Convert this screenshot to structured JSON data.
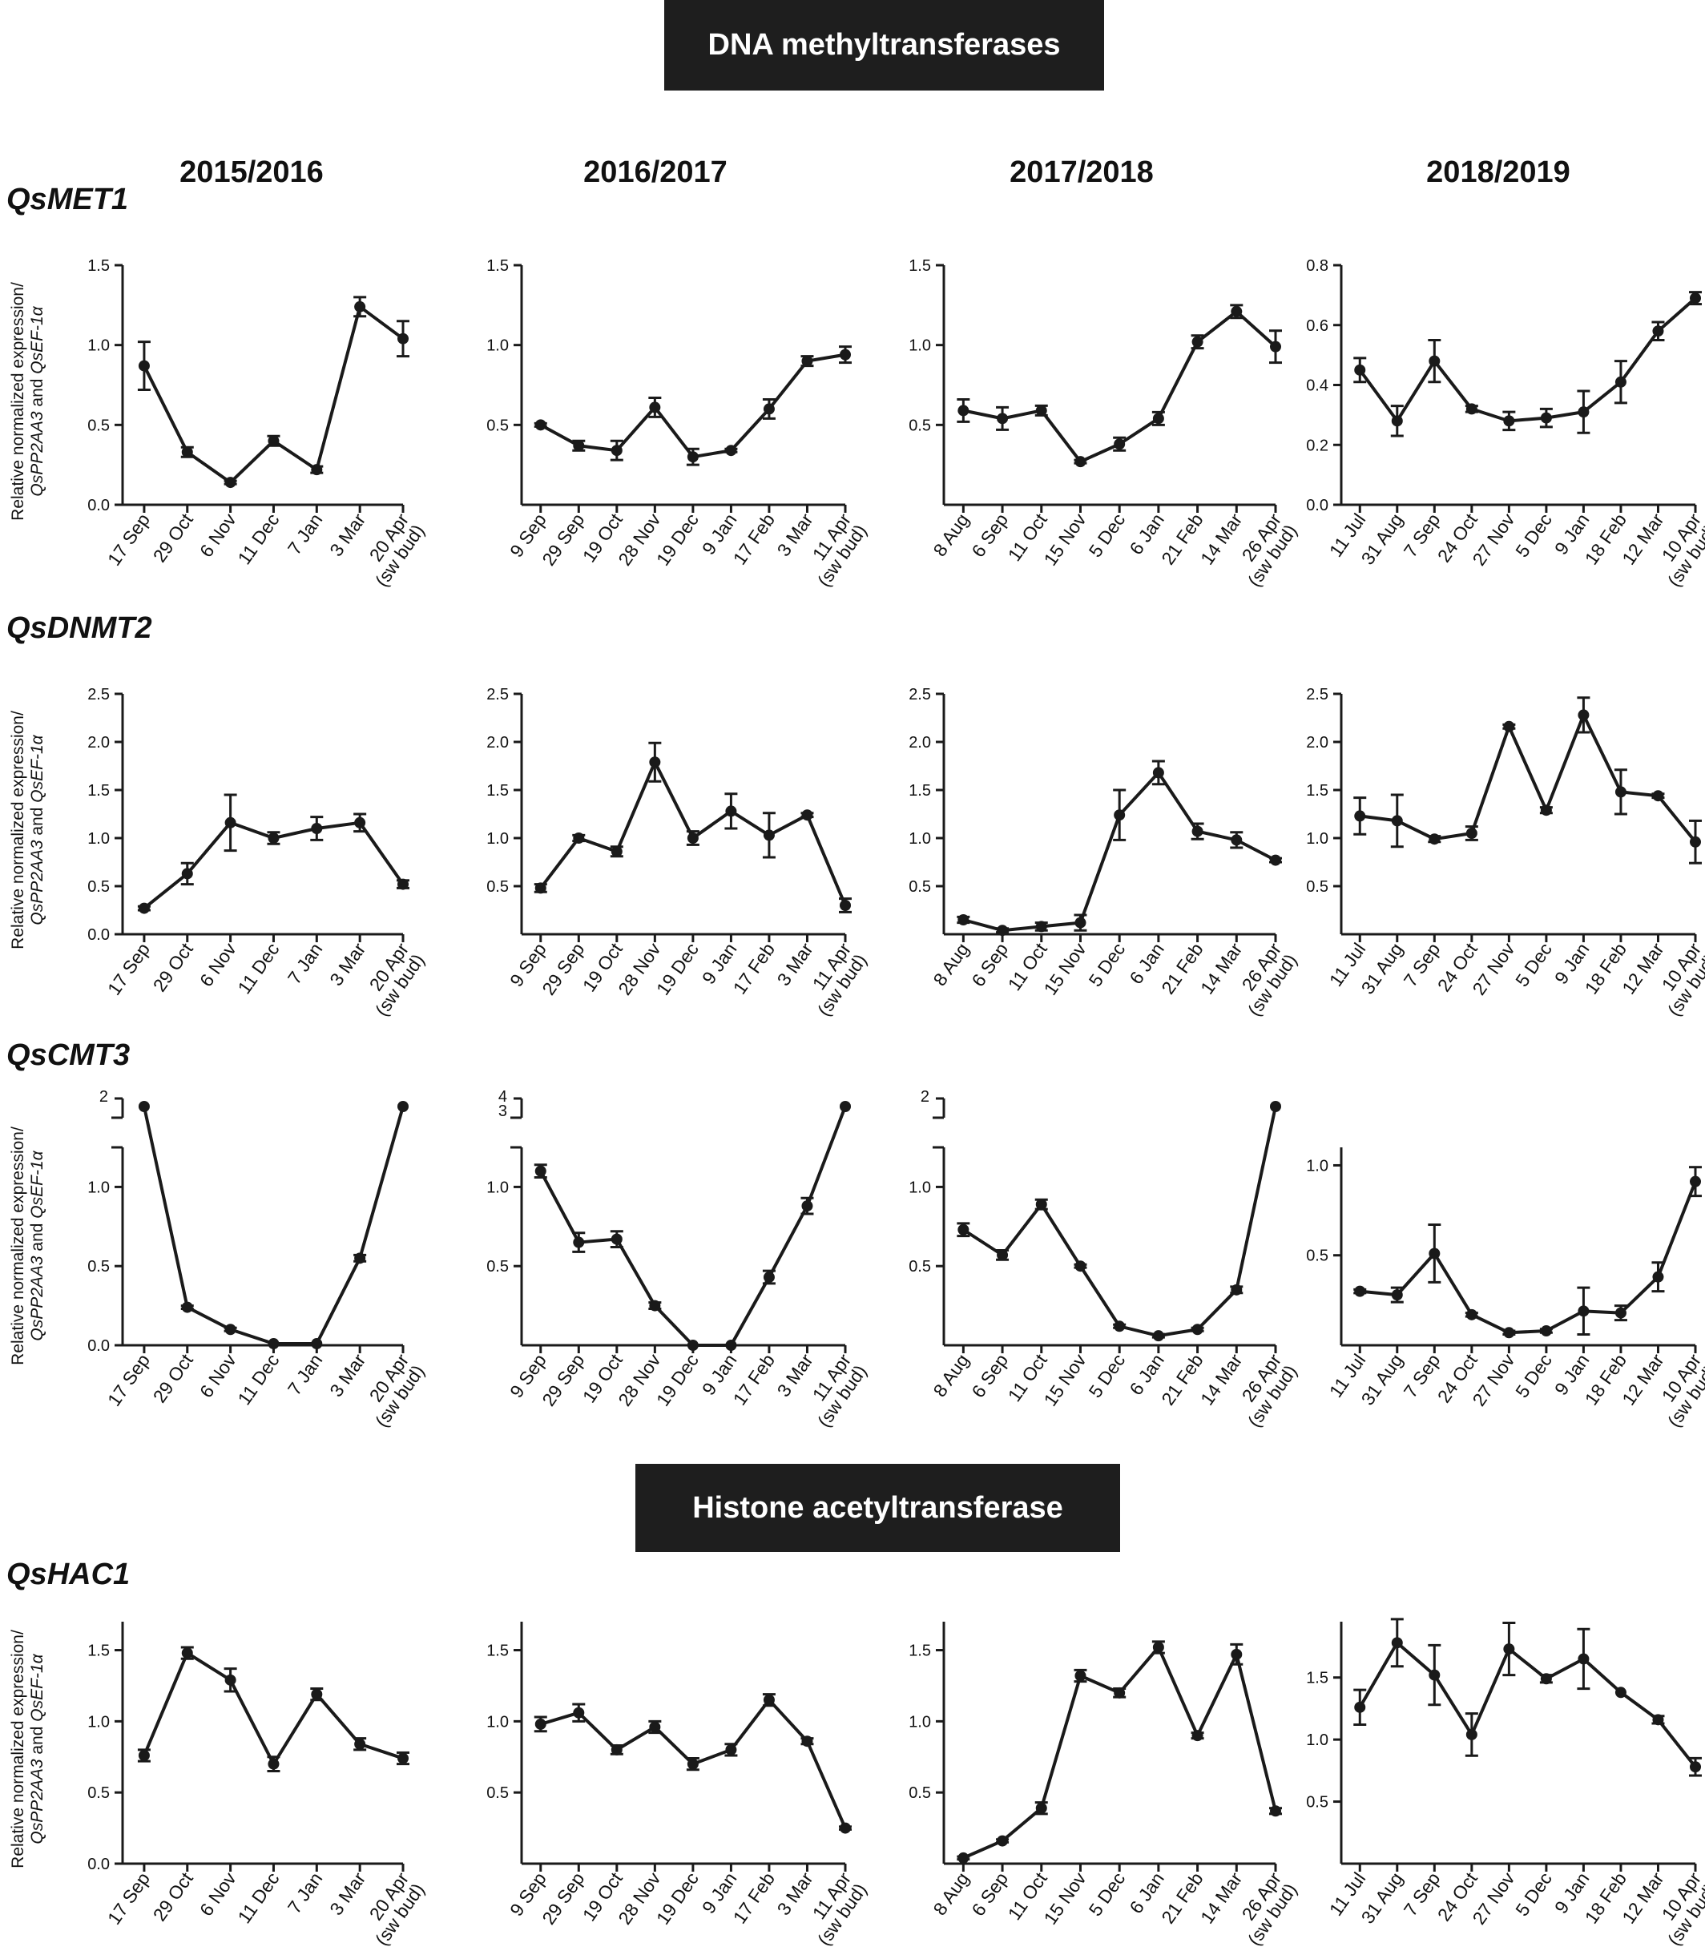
{
  "banners": {
    "dna": "DNA methyltransferases",
    "histone": "Histone acetyltransferase"
  },
  "seasons": [
    "2015/2016",
    "2016/2017",
    "2017/2018",
    "2018/2019"
  ],
  "ylabel": {
    "line1": "Relative normalized expression/",
    "gene1": "QsPP2AA3",
    "and": " and ",
    "gene2": "QsEF-1α"
  },
  "chart_data": [
    {
      "type": "line",
      "gene": "QsMET1",
      "season": "2015/2016",
      "categories": [
        "17 Sep",
        "29 Oct",
        "6 Nov",
        "11 Dec",
        "7 Jan",
        "3 Mar",
        "20 Apr|(sw bud)"
      ],
      "values": [
        0.87,
        0.33,
        0.14,
        0.4,
        0.22,
        1.24,
        1.04
      ],
      "errors": [
        0.15,
        0.03,
        0.01,
        0.03,
        0.02,
        0.06,
        0.11
      ],
      "ylim": [
        0,
        1.5
      ],
      "yticks": [
        "0.0",
        "0.5",
        "1.0",
        "1.5"
      ],
      "break": null
    },
    {
      "type": "line",
      "gene": "QsMET1",
      "season": "2016/2017",
      "categories": [
        "9 Sep",
        "29 Sep",
        "19 Oct",
        "28 Nov",
        "19 Dec",
        "9 Jan",
        "17 Feb",
        "3 Mar",
        "11 Apr|(sw bud)"
      ],
      "values": [
        0.5,
        0.37,
        0.34,
        0.61,
        0.3,
        0.34,
        0.6,
        0.9,
        0.94
      ],
      "errors": [
        0.01,
        0.03,
        0.06,
        0.06,
        0.05,
        0.01,
        0.06,
        0.03,
        0.05
      ],
      "ylim": [
        0,
        1.5
      ],
      "yticks": [
        "0.5",
        "1.0",
        "1.5"
      ],
      "break": null
    },
    {
      "type": "line",
      "gene": "QsMET1",
      "season": "2017/2018",
      "categories": [
        "8 Aug",
        "6 Sep",
        "11 Oct",
        "15 Nov",
        "5 Dec",
        "6 Jan",
        "21 Feb",
        "14 Mar",
        "26 Apr|(sw bud)"
      ],
      "values": [
        0.59,
        0.54,
        0.59,
        0.27,
        0.38,
        0.54,
        1.02,
        1.21,
        0.99
      ],
      "errors": [
        0.07,
        0.07,
        0.03,
        0.01,
        0.04,
        0.04,
        0.04,
        0.04,
        0.1
      ],
      "ylim": [
        0,
        1.5
      ],
      "yticks": [
        "0.5",
        "1.0",
        "1.5"
      ],
      "break": null
    },
    {
      "type": "line",
      "gene": "QsMET1",
      "season": "2018/2019",
      "categories": [
        "11 Jul",
        "31 Aug",
        "7 Sep",
        "24 Oct",
        "27 Nov",
        "5 Dec",
        "9 Jan",
        "18 Feb",
        "12 Mar",
        "10 Apr|(sw bud)"
      ],
      "values": [
        0.45,
        0.28,
        0.48,
        0.32,
        0.28,
        0.29,
        0.31,
        0.41,
        0.58,
        0.69
      ],
      "errors": [
        0.04,
        0.05,
        0.07,
        0.01,
        0.03,
        0.03,
        0.07,
        0.07,
        0.03,
        0.02
      ],
      "ylim": [
        0,
        0.8
      ],
      "yticks": [
        "0.0",
        "0.2",
        "0.4",
        "0.6",
        "0.8"
      ],
      "break": null
    },
    {
      "type": "line",
      "gene": "QsDNMT2",
      "season": "2015/2016",
      "categories": [
        "17 Sep",
        "29 Oct",
        "6 Nov",
        "11 Dec",
        "7 Jan",
        "3 Mar",
        "20 Apr|(sw bud)"
      ],
      "values": [
        0.27,
        0.63,
        1.16,
        1.0,
        1.1,
        1.16,
        0.52
      ],
      "errors": [
        0.02,
        0.11,
        0.29,
        0.06,
        0.12,
        0.09,
        0.04
      ],
      "ylim": [
        0,
        2.5
      ],
      "yticks": [
        "0.0",
        "0.5",
        "1.0",
        "1.5",
        "2.0",
        "2.5"
      ],
      "break": null
    },
    {
      "type": "line",
      "gene": "QsDNMT2",
      "season": "2016/2017",
      "categories": [
        "9 Sep",
        "29 Sep",
        "19 Oct",
        "28 Nov",
        "19 Dec",
        "9 Jan",
        "17 Feb",
        "3 Mar",
        "11 Apr|(sw bud)"
      ],
      "values": [
        0.48,
        1.0,
        0.86,
        1.79,
        1.0,
        1.28,
        1.03,
        1.24,
        0.3
      ],
      "errors": [
        0.04,
        0.03,
        0.05,
        0.2,
        0.07,
        0.18,
        0.23,
        0.02,
        0.07
      ],
      "ylim": [
        0,
        2.5
      ],
      "yticks": [
        "0.5",
        "1.0",
        "1.5",
        "2.0",
        "2.5"
      ],
      "break": null
    },
    {
      "type": "line",
      "gene": "QsDNMT2",
      "season": "2017/2018",
      "categories": [
        "8 Aug",
        "6 Sep",
        "11 Oct",
        "15 Nov",
        "5 Dec",
        "6 Jan",
        "21 Feb",
        "14 Mar",
        "26 Apr|(sw bud)"
      ],
      "values": [
        0.15,
        0.04,
        0.08,
        0.12,
        1.24,
        1.68,
        1.07,
        0.98,
        0.77
      ],
      "errors": [
        0.03,
        0.02,
        0.04,
        0.08,
        0.26,
        0.12,
        0.08,
        0.08,
        0.02
      ],
      "ylim": [
        0,
        2.5
      ],
      "yticks": [
        "0.5",
        "1.0",
        "1.5",
        "2.0",
        "2.5"
      ],
      "break": null
    },
    {
      "type": "line",
      "gene": "QsDNMT2",
      "season": "2018/2019",
      "categories": [
        "11 Jul",
        "31 Aug",
        "7 Sep",
        "24 Oct",
        "27 Nov",
        "5 Dec",
        "9 Jan",
        "18 Feb",
        "12 Mar",
        "10 Apr|(sw bud)"
      ],
      "values": [
        1.23,
        1.18,
        0.99,
        1.05,
        2.16,
        1.29,
        2.28,
        1.48,
        1.44,
        0.96
      ],
      "errors": [
        0.19,
        0.27,
        0.03,
        0.07,
        0.02,
        0.03,
        0.18,
        0.23,
        0.02,
        0.22
      ],
      "ylim": [
        0,
        2.5
      ],
      "yticks": [
        "0.5",
        "1.0",
        "1.5",
        "2.0",
        "2.5"
      ],
      "break": null
    },
    {
      "type": "line",
      "gene": "QsCMT3",
      "season": "2015/2016",
      "categories": [
        "17 Sep",
        "29 Oct",
        "6 Nov",
        "11 Dec",
        "7 Jan",
        "3 Mar",
        "20 Apr|(sw bud)"
      ],
      "values": [
        1.78,
        0.24,
        0.1,
        0.01,
        0.01,
        0.55,
        1.76
      ],
      "errors": [
        0.02,
        0.01,
        0.01,
        0.0,
        0.0,
        0.02,
        0.02
      ],
      "ylim": [
        0,
        1.25
      ],
      "yticks": [
        "0.0",
        "0.5",
        "1.0"
      ],
      "break": {
        "lower": 1.25,
        "upper_ticks": [
          "2"
        ]
      }
    },
    {
      "type": "line",
      "gene": "QsCMT3",
      "season": "2016/2017",
      "categories": [
        "9 Sep",
        "29 Sep",
        "19 Oct",
        "28 Nov",
        "19 Dec",
        "9 Jan",
        "17 Feb",
        "3 Mar",
        "11 Apr|(sw bud)"
      ],
      "values": [
        1.1,
        0.65,
        0.67,
        0.25,
        0.0,
        0.0,
        0.43,
        0.88,
        1.4
      ],
      "errors": [
        0.04,
        0.06,
        0.05,
        0.02,
        0.0,
        0.0,
        0.04,
        0.05,
        0.02
      ],
      "ylim": [
        0,
        1.25
      ],
      "yticks": [
        "0.5",
        "1.0"
      ],
      "break": {
        "lower": 1.25,
        "upper_ticks": [
          "4",
          "3"
        ]
      }
    },
    {
      "type": "line",
      "gene": "QsCMT3",
      "season": "2017/2018",
      "categories": [
        "8 Aug",
        "6 Sep",
        "11 Oct",
        "15 Nov",
        "5 Dec",
        "6 Jan",
        "21 Feb",
        "14 Mar",
        "26 Apr|(sw bud)"
      ],
      "values": [
        0.73,
        0.57,
        0.89,
        0.5,
        0.12,
        0.06,
        0.1,
        0.35,
        1.78
      ],
      "errors": [
        0.04,
        0.03,
        0.03,
        0.01,
        0.01,
        0.01,
        0.01,
        0.02,
        0.02
      ],
      "ylim": [
        0,
        1.25
      ],
      "yticks": [
        "0.5",
        "1.0"
      ],
      "break": {
        "lower": 1.25,
        "upper_ticks": [
          "2"
        ]
      }
    },
    {
      "type": "line",
      "gene": "QsCMT3",
      "season": "2018/2019",
      "categories": [
        "11 Jul",
        "31 Aug",
        "7 Sep",
        "24 Oct",
        "27 Nov",
        "5 Dec",
        "9 Jan",
        "18 Feb",
        "12 Mar",
        "10 Apr|(sw bud)"
      ],
      "values": [
        0.3,
        0.28,
        0.51,
        0.17,
        0.07,
        0.08,
        0.19,
        0.18,
        0.38,
        0.91
      ],
      "errors": [
        0.01,
        0.04,
        0.16,
        0.01,
        0.01,
        0.01,
        0.13,
        0.04,
        0.08,
        0.08
      ],
      "ylim": [
        0,
        1.1
      ],
      "yticks": [
        "0.5",
        "1.0"
      ],
      "break": null
    },
    {
      "type": "line",
      "gene": "QsHAC1",
      "season": "2015/2016",
      "categories": [
        "17 Sep",
        "29 Oct",
        "6 Nov",
        "11 Dec",
        "7 Jan",
        "3 Mar",
        "20 Apr|(sw bud)"
      ],
      "values": [
        0.76,
        1.48,
        1.29,
        0.7,
        1.19,
        0.84,
        0.74
      ],
      "errors": [
        0.04,
        0.04,
        0.08,
        0.05,
        0.04,
        0.04,
        0.04
      ],
      "ylim": [
        0,
        1.7
      ],
      "yticks": [
        "0.0",
        "0.5",
        "1.0",
        "1.5"
      ],
      "break": null
    },
    {
      "type": "line",
      "gene": "QsHAC1",
      "season": "2016/2017",
      "categories": [
        "9 Sep",
        "29 Sep",
        "19 Oct",
        "28 Nov",
        "19 Dec",
        "9 Jan",
        "17 Feb",
        "3 Mar",
        "11 Apr|(sw bud)"
      ],
      "values": [
        0.98,
        1.06,
        0.8,
        0.96,
        0.7,
        0.8,
        1.15,
        0.86,
        0.25
      ],
      "errors": [
        0.05,
        0.06,
        0.03,
        0.04,
        0.04,
        0.04,
        0.04,
        0.02,
        0.01
      ],
      "ylim": [
        0,
        1.7
      ],
      "yticks": [
        "0.5",
        "1.0",
        "1.5"
      ],
      "break": null
    },
    {
      "type": "line",
      "gene": "QsHAC1",
      "season": "2017/2018",
      "categories": [
        "8 Aug",
        "6 Sep",
        "11 Oct",
        "15 Nov",
        "5 Dec",
        "6 Jan",
        "21 Feb",
        "14 Mar",
        "26 Apr|(sw bud)"
      ],
      "values": [
        0.04,
        0.16,
        0.39,
        1.32,
        1.2,
        1.52,
        0.9,
        1.47,
        0.37
      ],
      "errors": [
        0.01,
        0.01,
        0.04,
        0.04,
        0.03,
        0.04,
        0.02,
        0.07,
        0.02
      ],
      "ylim": [
        0,
        1.7
      ],
      "yticks": [
        "0.5",
        "1.0",
        "1.5"
      ],
      "break": null
    },
    {
      "type": "line",
      "gene": "QsHAC1",
      "season": "2018/2019",
      "categories": [
        "11 Jul",
        "31 Aug",
        "7 Sep",
        "24 Oct",
        "27 Nov",
        "5 Dec",
        "9 Jan",
        "18 Feb",
        "12 Mar",
        "10 Apr|(sw bud)"
      ],
      "values": [
        1.26,
        1.78,
        1.52,
        1.04,
        1.73,
        1.49,
        1.65,
        1.38,
        1.16,
        0.78
      ],
      "errors": [
        0.14,
        0.19,
        0.24,
        0.17,
        0.21,
        0.03,
        0.24,
        0.0,
        0.03,
        0.07
      ],
      "ylim": [
        0,
        1.95
      ],
      "yticks": [
        "0.5",
        "1.0",
        "1.5"
      ],
      "break": null
    }
  ]
}
